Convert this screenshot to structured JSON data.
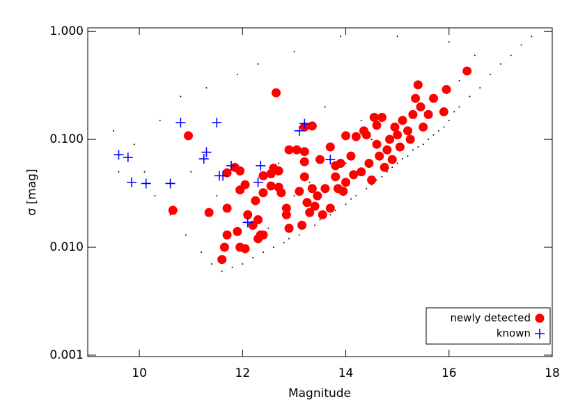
{
  "chart_data": {
    "type": "scatter",
    "x_label": "Magnitude",
    "y_label": "σ   [mag]",
    "xlim": [
      9,
      18
    ],
    "xticks": [
      10,
      12,
      14,
      16,
      18
    ],
    "ylim": [
      0.00097,
      1.08
    ],
    "y_log": true,
    "yticks": [
      {
        "value": 0.001,
        "label": "0.001"
      },
      {
        "value": 0.01,
        "label": "0.010"
      },
      {
        "value": 0.1,
        "label": "0.100"
      },
      {
        "value": 1,
        "label": "1.000"
      }
    ],
    "legend": "lower right",
    "series": [
      {
        "color": "#000000",
        "marker": "dot",
        "x": [
          9.5,
          9.6,
          9.9,
          10.1,
          10.3,
          10.4,
          10.6,
          10.8,
          10.9,
          11.0,
          11.2,
          11.3,
          11.4,
          11.5,
          11.6,
          11.8,
          11.9,
          12.0,
          12.1,
          12.2,
          12.3,
          12.4,
          12.6,
          12.7,
          12.8,
          12.9,
          13.0,
          13.1,
          13.2,
          13.3,
          13.4,
          13.5,
          13.6,
          13.7,
          13.8,
          13.9,
          14.0,
          14.1,
          14.2,
          14.3,
          14.4,
          14.5,
          14.6,
          14.7,
          14.8,
          14.9,
          15.0,
          15.1,
          15.2,
          15.3,
          15.4,
          15.5,
          15.6,
          15.7,
          15.8,
          15.9,
          16.0,
          16.1,
          16.2,
          16.4,
          16.6,
          16.8,
          17.0,
          17.2,
          17.4,
          17.6,
          15.0,
          16.0,
          16.5,
          14.5,
          15.5,
          16.2,
          14.0,
          13.0,
          12.5
        ],
        "values": [
          0.12,
          0.05,
          0.09,
          0.05,
          0.03,
          0.15,
          0.02,
          0.25,
          0.013,
          0.05,
          0.009,
          0.3,
          0.007,
          0.03,
          0.006,
          0.0065,
          0.4,
          0.007,
          0.02,
          0.008,
          0.5,
          0.009,
          0.01,
          0.06,
          0.011,
          0.012,
          0.65,
          0.013,
          0.015,
          0.04,
          0.016,
          0.018,
          0.2,
          0.02,
          0.022,
          0.9,
          0.025,
          0.028,
          0.03,
          0.15,
          0.035,
          0.038,
          0.042,
          0.045,
          0.05,
          0.055,
          0.06,
          0.066,
          0.07,
          0.08,
          0.085,
          0.09,
          0.1,
          0.11,
          0.12,
          0.13,
          0.15,
          0.18,
          0.2,
          0.25,
          0.3,
          0.4,
          0.5,
          0.6,
          0.75,
          0.9,
          0.9,
          0.8,
          0.6,
          0.1,
          0.2,
          0.35,
          0.06,
          0.03,
          0.015
        ]
      },
      {
        "name": "newly detected",
        "color": "#ff0000",
        "marker": "circle",
        "x": [
          10.65,
          10.95,
          11.35,
          11.6,
          11.65,
          11.7,
          11.7,
          11.7,
          11.85,
          11.9,
          11.95,
          11.95,
          11.95,
          12.05,
          12.05,
          12.1,
          12.2,
          12.25,
          12.3,
          12.3,
          12.35,
          12.4,
          12.4,
          12.4,
          12.55,
          12.55,
          12.6,
          12.65,
          12.7,
          12.7,
          12.75,
          12.85,
          12.85,
          12.9,
          12.9,
          13.05,
          13.1,
          13.2,
          13.2,
          13.2,
          13.15,
          13.2,
          13.25,
          13.3,
          13.35,
          13.35,
          13.4,
          13.45,
          13.5,
          13.55,
          13.6,
          13.7,
          13.7,
          13.8,
          13.8,
          13.85,
          13.9,
          13.95,
          14.0,
          14.0,
          14.1,
          14.15,
          14.2,
          14.3,
          14.35,
          14.4,
          14.45,
          14.5,
          14.55,
          14.6,
          14.6,
          14.65,
          14.7,
          14.75,
          14.8,
          14.85,
          14.9,
          14.95,
          15.0,
          15.05,
          15.1,
          15.2,
          15.25,
          15.3,
          15.35,
          15.4,
          15.45,
          15.5,
          15.6,
          15.7,
          15.9,
          15.95,
          16.35
        ],
        "values": [
          0.022,
          0.108,
          0.021,
          0.0077,
          0.01,
          0.013,
          0.023,
          0.049,
          0.055,
          0.014,
          0.051,
          0.034,
          0.01,
          0.0097,
          0.038,
          0.02,
          0.016,
          0.027,
          0.018,
          0.012,
          0.013,
          0.032,
          0.046,
          0.013,
          0.037,
          0.048,
          0.054,
          0.27,
          0.036,
          0.051,
          0.032,
          0.02,
          0.023,
          0.015,
          0.08,
          0.08,
          0.033,
          0.077,
          0.062,
          0.045,
          0.016,
          0.13,
          0.026,
          0.021,
          0.133,
          0.035,
          0.024,
          0.03,
          0.065,
          0.02,
          0.035,
          0.085,
          0.023,
          0.045,
          0.057,
          0.035,
          0.06,
          0.033,
          0.108,
          0.04,
          0.07,
          0.047,
          0.106,
          0.05,
          0.12,
          0.11,
          0.06,
          0.042,
          0.16,
          0.09,
          0.135,
          0.07,
          0.16,
          0.055,
          0.08,
          0.1,
          0.065,
          0.13,
          0.11,
          0.085,
          0.15,
          0.12,
          0.1,
          0.17,
          0.24,
          0.32,
          0.2,
          0.13,
          0.17,
          0.24,
          0.18,
          0.29,
          0.43
        ]
      },
      {
        "name": "known",
        "color": "#0000ff",
        "marker": "plus",
        "x": [
          9.6,
          9.78,
          9.85,
          10.13,
          10.6,
          10.8,
          11.25,
          11.3,
          11.5,
          11.55,
          11.62,
          11.78,
          12.1,
          12.3,
          12.35,
          13.1,
          13.2,
          13.7
        ],
        "values": [
          0.072,
          0.068,
          0.04,
          0.039,
          0.039,
          0.143,
          0.066,
          0.076,
          0.143,
          0.046,
          0.046,
          0.057,
          0.017,
          0.04,
          0.057,
          0.12,
          0.14,
          0.065
        ]
      }
    ]
  }
}
